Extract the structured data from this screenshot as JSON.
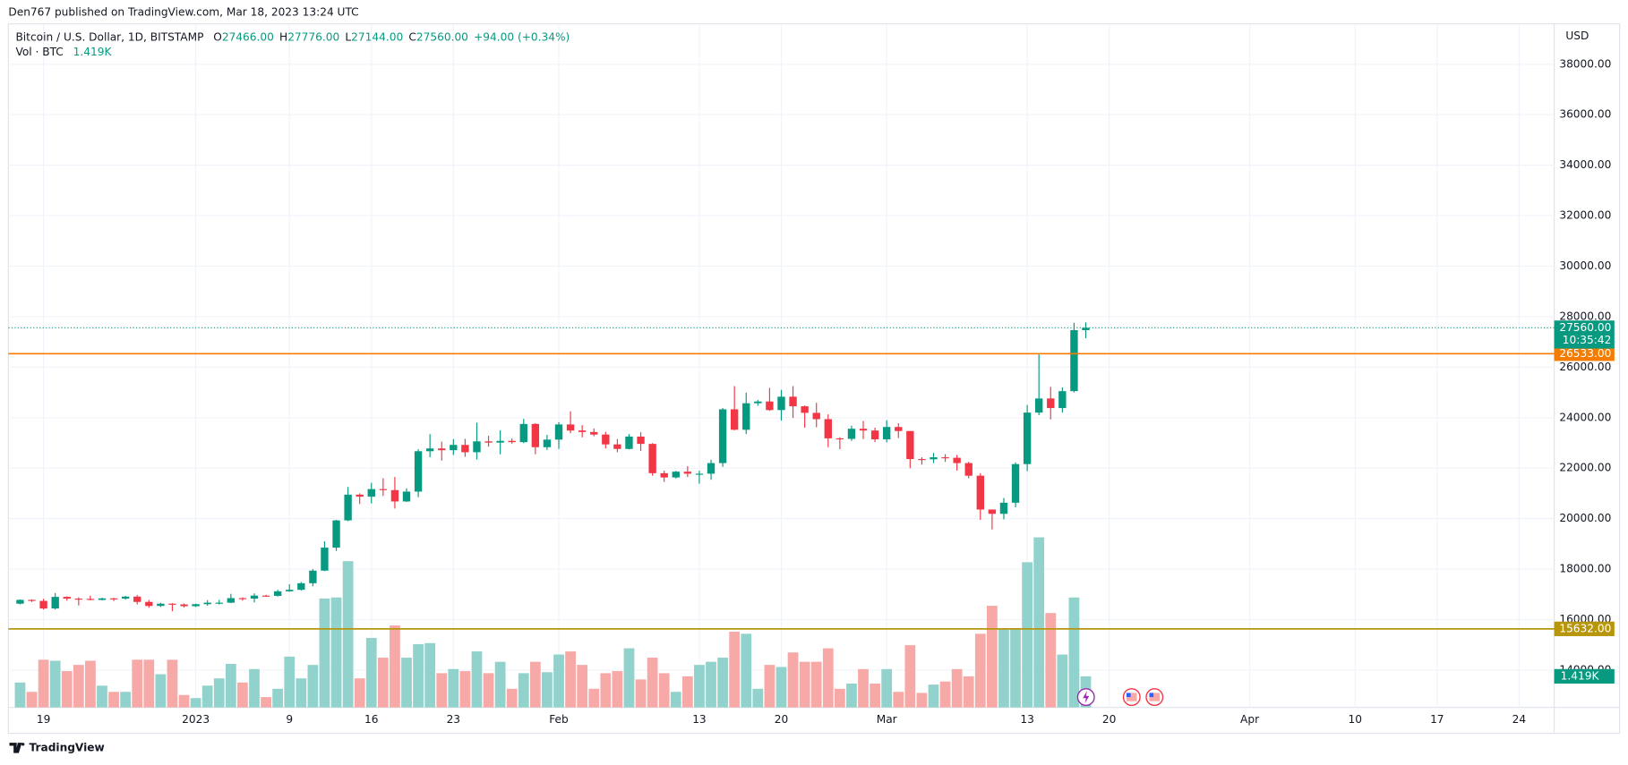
{
  "header": {
    "publisher": "Den767 published on TradingView.com, Mar 18, 2023 13:24 UTC"
  },
  "footer": {
    "brand": "TradingView"
  },
  "chart_data": {
    "type": "candlestick",
    "legend": {
      "symbol": "Bitcoin / U.S. Dollar, 1D, BITSTAMP",
      "o_label": "O",
      "o": "27466.00",
      "h_label": "H",
      "h": "27776.00",
      "l_label": "L",
      "l": "27144.00",
      "c_label": "C",
      "c": "27560.00",
      "change": "+94.00 (+0.34%)"
    },
    "currency": "USD",
    "up_color": "#089981",
    "down_color": "#f23645",
    "volume_up_color": "#92d2cc",
    "volume_down_color": "#f7a9a7",
    "x": [
      "2022-12-17",
      "2022-12-18",
      "2022-12-19",
      "2022-12-20",
      "2022-12-21",
      "2022-12-22",
      "2022-12-23",
      "2022-12-24",
      "2022-12-25",
      "2022-12-26",
      "2022-12-27",
      "2022-12-28",
      "2022-12-29",
      "2022-12-30",
      "2022-12-31",
      "2023-01-01",
      "2023-01-02",
      "2023-01-03",
      "2023-01-04",
      "2023-01-05",
      "2023-01-06",
      "2023-01-07",
      "2023-01-08",
      "2023-01-09",
      "2023-01-10",
      "2023-01-11",
      "2023-01-12",
      "2023-01-13",
      "2023-01-14",
      "2023-01-15",
      "2023-01-16",
      "2023-01-17",
      "2023-01-18",
      "2023-01-19",
      "2023-01-20",
      "2023-01-21",
      "2023-01-22",
      "2023-01-23",
      "2023-01-24",
      "2023-01-25",
      "2023-01-26",
      "2023-01-27",
      "2023-01-28",
      "2023-01-29",
      "2023-01-30",
      "2023-01-31",
      "2023-02-01",
      "2023-02-02",
      "2023-02-03",
      "2023-02-04",
      "2023-02-05",
      "2023-02-06",
      "2023-02-07",
      "2023-02-08",
      "2023-02-09",
      "2023-02-10",
      "2023-02-11",
      "2023-02-12",
      "2023-02-13",
      "2023-02-14",
      "2023-02-15",
      "2023-02-16",
      "2023-02-17",
      "2023-02-18",
      "2023-02-19",
      "2023-02-20",
      "2023-02-21",
      "2023-02-22",
      "2023-02-23",
      "2023-02-24",
      "2023-02-25",
      "2023-02-26",
      "2023-02-27",
      "2023-02-28",
      "2023-03-01",
      "2023-03-02",
      "2023-03-03",
      "2023-03-04",
      "2023-03-05",
      "2023-03-06",
      "2023-03-07",
      "2023-03-08",
      "2023-03-09",
      "2023-03-10",
      "2023-03-11",
      "2023-03-12",
      "2023-03-13",
      "2023-03-14",
      "2023-03-15",
      "2023-03-16",
      "2023-03-17",
      "2023-03-18"
    ],
    "open": [
      16630,
      16780,
      16740,
      16440,
      16900,
      16830,
      16820,
      16780,
      16840,
      16830,
      16910,
      16700,
      16540,
      16630,
      16600,
      16530,
      16610,
      16670,
      16670,
      16850,
      16830,
      16950,
      16940,
      17120,
      17180,
      17440,
      17940,
      18850,
      19930,
      20950,
      20870,
      21170,
      21130,
      20680,
      21070,
      22670,
      22780,
      22710,
      22920,
      22630,
      23060,
      23010,
      23080,
      23030,
      23750,
      22830,
      23130,
      23730,
      23490,
      23430,
      23330,
      22940,
      22760,
      23250,
      22960,
      21800,
      21630,
      21860,
      21780,
      21780,
      22200,
      24330,
      23520,
      24570,
      24640,
      24300,
      24830,
      24450,
      24190,
      23940,
      23180,
      23160,
      23560,
      23490,
      23140,
      23630,
      23470,
      22360,
      22350,
      22430,
      22410,
      22200,
      21700,
      20360,
      20190,
      20630,
      22160,
      24200,
      24760,
      24380,
      25050,
      27466
    ],
    "high": [
      16800,
      16800,
      16820,
      17050,
      16920,
      16880,
      16950,
      16870,
      16860,
      16940,
      16970,
      16780,
      16660,
      16650,
      16640,
      16630,
      16770,
      16780,
      17020,
      16880,
      17040,
      16980,
      17180,
      17400,
      17490,
      18000,
      19100,
      19950,
      21250,
      21000,
      21420,
      21600,
      21650,
      21200,
      22750,
      23350,
      23050,
      23150,
      23160,
      23800,
      23280,
      23500,
      23170,
      23950,
      23780,
      23320,
      23820,
      24250,
      23700,
      23570,
      23440,
      23150,
      23350,
      23420,
      22990,
      21900,
      21890,
      22080,
      21900,
      22330,
      24380,
      25250,
      24990,
      24700,
      25180,
      25100,
      25250,
      24480,
      24590,
      24130,
      23220,
      23680,
      23870,
      23600,
      23900,
      23780,
      23470,
      22430,
      22600,
      22550,
      22520,
      22250,
      21800,
      20360,
      20820,
      22230,
      24500,
      26500,
      25220,
      25200,
      27760,
      27776
    ],
    "low": [
      16600,
      16700,
      16400,
      16400,
      16750,
      16560,
      16760,
      16760,
      16730,
      16790,
      16600,
      16470,
      16500,
      16330,
      16480,
      16500,
      16550,
      16600,
      16650,
      16750,
      16680,
      16900,
      16910,
      17100,
      17150,
      17320,
      17920,
      18720,
      19900,
      20580,
      20600,
      20900,
      20400,
      20660,
      20850,
      22430,
      22300,
      22520,
      22450,
      22340,
      22850,
      22550,
      22970,
      22990,
      22550,
      22720,
      22760,
      23380,
      23220,
      23260,
      22780,
      22630,
      22740,
      22680,
      21700,
      21450,
      21590,
      21650,
      21380,
      21540,
      22050,
      23500,
      23350,
      24470,
      24270,
      23880,
      23990,
      23600,
      23620,
      22830,
      22750,
      23080,
      23150,
      23030,
      23020,
      23190,
      22000,
      22140,
      22200,
      22250,
      21900,
      21600,
      19950,
      19570,
      19970,
      20450,
      21880,
      24100,
      23930,
      24200,
      25000,
      27144
    ],
    "close": [
      16780,
      16740,
      16440,
      16900,
      16830,
      16820,
      16780,
      16840,
      16830,
      16910,
      16700,
      16540,
      16630,
      16600,
      16530,
      16610,
      16670,
      16670,
      16850,
      16830,
      16950,
      16940,
      17120,
      17180,
      17440,
      17940,
      18850,
      19930,
      20950,
      20870,
      21170,
      21130,
      20680,
      21070,
      22670,
      22780,
      22710,
      22920,
      22630,
      23060,
      23010,
      23080,
      23030,
      23750,
      22830,
      23130,
      23730,
      23490,
      23430,
      23330,
      22940,
      22760,
      23250,
      22960,
      21800,
      21630,
      21860,
      21780,
      21780,
      22200,
      24330,
      23520,
      24570,
      24640,
      24300,
      24830,
      24450,
      24190,
      23940,
      23180,
      23160,
      23560,
      23490,
      23140,
      23630,
      23470,
      22360,
      22350,
      22430,
      22410,
      22200,
      21700,
      20360,
      20190,
      20630,
      22160,
      24200,
      24760,
      24380,
      25050,
      27466,
      27560
    ],
    "volume": {
      "name": "Vol · BTC",
      "values": [
        1135,
        710,
        2176,
        2129,
        1656,
        1939,
        2129,
        993,
        710,
        710,
        2176,
        2176,
        1514,
        2176,
        568,
        426,
        993,
        1324,
        1987,
        1135,
        1750,
        473,
        851,
        2318,
        1324,
        1939,
        4967,
        5014,
        6669,
        1324,
        3169,
        2270,
        3737,
        2270,
        2885,
        2933,
        1561,
        1750,
        1656,
        2554,
        1561,
        2081,
        851,
        1561,
        2081,
        1608,
        2412,
        2554,
        1939,
        851,
        1561,
        1656,
        2696,
        1277,
        2270,
        1561,
        710,
        1419,
        1939,
        2081,
        2270,
        3453,
        3358,
        851,
        1939,
        1845,
        2507,
        2081,
        2081,
        2696,
        851,
        1088,
        1750,
        1088,
        1750,
        710,
        2838,
        662,
        1041,
        1183,
        1750,
        1419,
        3358,
        4635,
        3595,
        3595,
        6622,
        7757,
        4304,
        2412,
        5014,
        1419
      ]
    },
    "last_volume": {
      "value": 1419,
      "label": "1.419K"
    },
    "last_price": {
      "value": 27560,
      "label": "27560.00",
      "countdown": "10:35:42"
    },
    "levels": [
      {
        "value": 26533,
        "label": "26533.00",
        "color": "#f57c00"
      },
      {
        "value": 15632,
        "label": "15632.00",
        "color": "#b8960c"
      }
    ],
    "xlim": [
      "2022-12-16",
      "2023-04-27"
    ],
    "xticks": [
      {
        "value": "2022-12-19",
        "label": "19"
      },
      {
        "value": "2023-01-01",
        "label": "2023"
      },
      {
        "value": "2023-01-09",
        "label": "9"
      },
      {
        "value": "2023-01-16",
        "label": "16"
      },
      {
        "value": "2023-01-23",
        "label": "23"
      },
      {
        "value": "2023-02-01",
        "label": "Feb"
      },
      {
        "value": "2023-02-13",
        "label": "13"
      },
      {
        "value": "2023-02-20",
        "label": "20"
      },
      {
        "value": "2023-03-01",
        "label": "Mar"
      },
      {
        "value": "2023-03-13",
        "label": "13"
      },
      {
        "value": "2023-03-20",
        "label": "20"
      },
      {
        "value": "2023-04-01",
        "label": "Apr"
      },
      {
        "value": "2023-04-10",
        "label": "10"
      },
      {
        "value": "2023-04-17",
        "label": "17"
      },
      {
        "value": "2023-04-24",
        "label": "24"
      }
    ],
    "ylim": [
      12520,
      39600
    ],
    "yticks": [
      {
        "value": 14000,
        "label": "14000.00"
      },
      {
        "value": 16000,
        "label": "16000.00"
      },
      {
        "value": 18000,
        "label": "18000.00"
      },
      {
        "value": 20000,
        "label": "20000.00"
      },
      {
        "value": 22000,
        "label": "22000.00"
      },
      {
        "value": 24000,
        "label": "24000.00"
      },
      {
        "value": 26000,
        "label": "26000.00"
      },
      {
        "value": 28000,
        "label": "28000.00"
      },
      {
        "value": 30000,
        "label": "30000.00"
      },
      {
        "value": 32000,
        "label": "32000.00"
      },
      {
        "value": 34000,
        "label": "34000.00"
      },
      {
        "value": 36000,
        "label": "36000.00"
      },
      {
        "value": 38000,
        "label": "38000.00"
      }
    ],
    "grid": true
  }
}
